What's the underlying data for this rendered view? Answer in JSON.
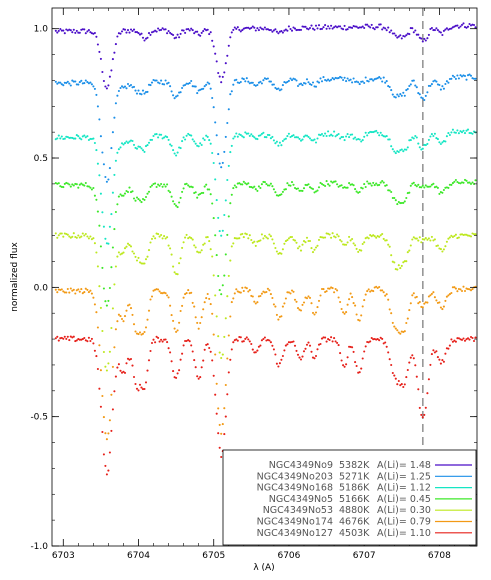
{
  "chart_data": {
    "type": "scatter",
    "xlabel": "λ (A)",
    "ylabel": "normalized flux",
    "xlim": [
      6702.85,
      6708.5
    ],
    "ylim": [
      -1.0,
      1.08
    ],
    "x_ticks": [
      6703,
      6704,
      6705,
      6706,
      6707,
      6708
    ],
    "y_ticks": [
      -1.0,
      -0.5,
      0.0,
      0.5,
      1.0
    ],
    "y_tick_labels": [
      "-1.0",
      "-0.5",
      "0.0",
      "0.5",
      "1.0"
    ],
    "reference_line": {
      "x": 6707.78,
      "style": "dashed",
      "color": "#888888"
    },
    "lines": [
      {
        "center": 6703.58,
        "width": 0.07
      },
      {
        "center": 6703.8,
        "width": 0.05
      },
      {
        "center": 6703.97,
        "width": 0.05
      },
      {
        "center": 6704.08,
        "width": 0.05
      },
      {
        "center": 6704.5,
        "width": 0.055
      },
      {
        "center": 6704.8,
        "width": 0.05
      },
      {
        "center": 6705.1,
        "width": 0.065
      },
      {
        "center": 6705.56,
        "width": 0.04
      },
      {
        "center": 6705.87,
        "width": 0.055
      },
      {
        "center": 6706.15,
        "width": 0.05
      },
      {
        "center": 6706.34,
        "width": 0.045
      },
      {
        "center": 6706.73,
        "width": 0.045
      },
      {
        "center": 6706.93,
        "width": 0.05
      },
      {
        "center": 6707.43,
        "width": 0.07
      },
      {
        "center": 6707.55,
        "width": 0.05
      },
      {
        "center": 6707.78,
        "width": 0.065
      },
      {
        "center": 6708.03,
        "width": 0.06
      }
    ],
    "series": [
      {
        "star": "NGC4349No9",
        "teff": "5382K",
        "ali": "1.48",
        "color": "#4b0fc8",
        "continuum": 1.0,
        "slope": 0.012,
        "depths": [
          0.22,
          0,
          0,
          0.03,
          0.03,
          0.02,
          0.2,
          0,
          0.02,
          0,
          0,
          0,
          0,
          0.04,
          0.03,
          0.06,
          0.03
        ]
      },
      {
        "star": "NGC4349No203",
        "teff": "5271K",
        "ali": "1.25",
        "color": "#1b8fe8",
        "continuum": 0.8,
        "slope": 0.012,
        "depths": [
          0.38,
          0.02,
          0.03,
          0.04,
          0.06,
          0.04,
          0.33,
          0.02,
          0.04,
          0.02,
          0.02,
          0,
          0.02,
          0.07,
          0.04,
          0.08,
          0.04
        ]
      },
      {
        "star": "NGC4349No168",
        "teff": "5186K",
        "ali": "1.12",
        "color": "#16e6c4",
        "continuum": 0.59,
        "slope": 0.012,
        "depths": [
          0.42,
          0.03,
          0.04,
          0.05,
          0.07,
          0.04,
          0.38,
          0.02,
          0.04,
          0.02,
          0.03,
          0.02,
          0.03,
          0.07,
          0.05,
          0.06,
          0.04
        ]
      },
      {
        "star": "NGC4349No5",
        "teff": "5166K",
        "ali": "0.45",
        "color": "#3ee82a",
        "continuum": 0.4,
        "slope": 0.006,
        "depths": [
          0.46,
          0.03,
          0.05,
          0.06,
          0.09,
          0.05,
          0.42,
          0.02,
          0.05,
          0.03,
          0.03,
          0.02,
          0.03,
          0.07,
          0.05,
          0.02,
          0.04
        ]
      },
      {
        "star": "NGC4349No53",
        "teff": "4880K",
        "ali": "0.30",
        "color": "#bde81f",
        "continuum": 0.2,
        "slope": 0.0,
        "depths": [
          0.52,
          0.06,
          0.08,
          0.1,
          0.15,
          0.07,
          0.48,
          0.03,
          0.07,
          0.05,
          0.06,
          0.04,
          0.06,
          0.12,
          0.07,
          0.02,
          0.06
        ]
      },
      {
        "star": "NGC4349No174",
        "teff": "4676K",
        "ali": "0.79",
        "color": "#f29a16",
        "continuum": -0.01,
        "slope": 0.005,
        "depths": [
          0.58,
          0.11,
          0.15,
          0.15,
          0.16,
          0.14,
          0.55,
          0.05,
          0.11,
          0.08,
          0.09,
          0.1,
          0.12,
          0.16,
          0.11,
          0.07,
          0.07
        ]
      },
      {
        "star": "NGC4349No127",
        "teff": "4503K",
        "ali": "1.10",
        "color": "#e6201a",
        "continuum": -0.2,
        "slope": 0.0,
        "depths": [
          0.52,
          0.13,
          0.17,
          0.17,
          0.15,
          0.15,
          0.45,
          0.06,
          0.1,
          0.08,
          0.07,
          0.11,
          0.13,
          0.16,
          0.13,
          0.31,
          0.09
        ]
      }
    ],
    "legend": {
      "placement": "bottom-right",
      "value_prefix": "A(Li)= "
    }
  }
}
